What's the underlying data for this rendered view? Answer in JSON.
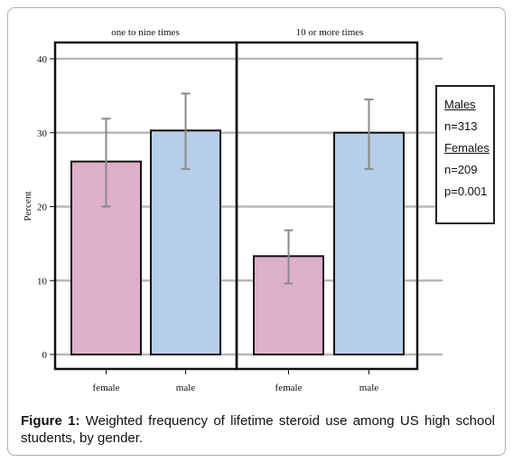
{
  "chart_data": {
    "type": "bar",
    "ylabel": "Percent",
    "ylim": [
      0,
      40
    ],
    "yticks": [
      "0",
      "10",
      "20",
      "30",
      "40"
    ],
    "panels": [
      {
        "title": "one to nine times",
        "categories": [
          "female",
          "male"
        ],
        "values": [
          26.1,
          30.3
        ],
        "error_low": [
          20.0,
          25.1
        ],
        "error_high": [
          31.9,
          35.3
        ]
      },
      {
        "title": "10 or more times",
        "categories": [
          "female",
          "male"
        ],
        "values": [
          13.3,
          30.0
        ],
        "error_low": [
          9.6,
          25.1
        ],
        "error_high": [
          16.8,
          34.5
        ]
      }
    ],
    "colors": {
      "female": "#deb0c9",
      "male": "#b6cee8"
    },
    "gridlines": true
  },
  "legend": {
    "males_title": "Males",
    "males_n": "n=313",
    "females_title": "Females",
    "females_n": "n=209",
    "p_value": "p=0.001"
  },
  "caption": {
    "lead": "Figure 1:",
    "text": " Weighted frequency of lifetime steroid use among US high school students, by gender."
  }
}
